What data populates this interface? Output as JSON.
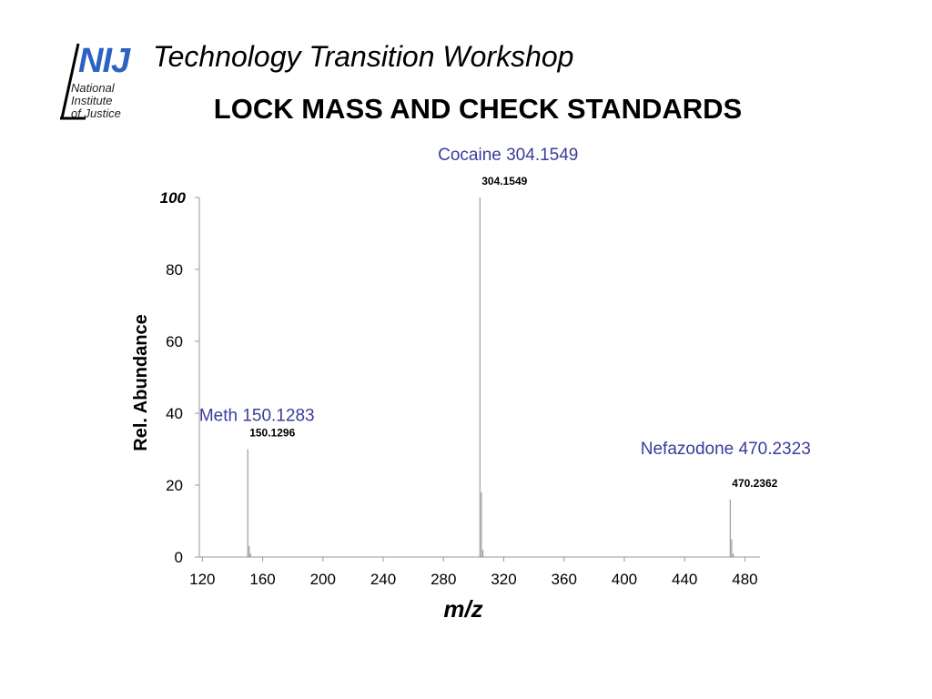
{
  "header": {
    "logo_text": "NIJ",
    "logo_sub": [
      "National",
      "Institute",
      "of Justice"
    ],
    "workshop": "Technology Transition Workshop",
    "title": "LOCK MASS AND CHECK STANDARDS"
  },
  "colors": {
    "logo_blue": "#2b63c5",
    "annotation": "#3a3d9c",
    "spectrum_line": "#888888"
  },
  "chart_data": {
    "type": "bar",
    "xlabel": "m/z",
    "ylabel": "Rel. Abundance",
    "xlim": [
      118,
      490
    ],
    "ylim": [
      0,
      100
    ],
    "x_ticks": [
      120,
      160,
      200,
      240,
      280,
      320,
      360,
      400,
      440,
      480
    ],
    "y_ticks": [
      0,
      20,
      40,
      60,
      80,
      100
    ],
    "peaks": [
      {
        "mz": 150.1296,
        "abundance": 30
      },
      {
        "mz": 151.1,
        "abundance": 3
      },
      {
        "mz": 152.0,
        "abundance": 1
      },
      {
        "mz": 304.1549,
        "abundance": 100
      },
      {
        "mz": 305.16,
        "abundance": 18
      },
      {
        "mz": 306.16,
        "abundance": 2
      },
      {
        "mz": 470.2362,
        "abundance": 16
      },
      {
        "mz": 471.24,
        "abundance": 5
      },
      {
        "mz": 472.24,
        "abundance": 1
      }
    ],
    "peak_labels": [
      {
        "mz": 150.1296,
        "abundance": 30,
        "text": "150.1296"
      },
      {
        "mz": 304.1549,
        "abundance": 100,
        "text": "304.1549"
      },
      {
        "mz": 470.2362,
        "abundance": 16,
        "text": "470.2362"
      }
    ],
    "annotations": [
      {
        "text": "Meth 150.1283"
      },
      {
        "text": "Cocaine 304.1549"
      },
      {
        "text": "Nefazodone 470.2323"
      }
    ]
  }
}
